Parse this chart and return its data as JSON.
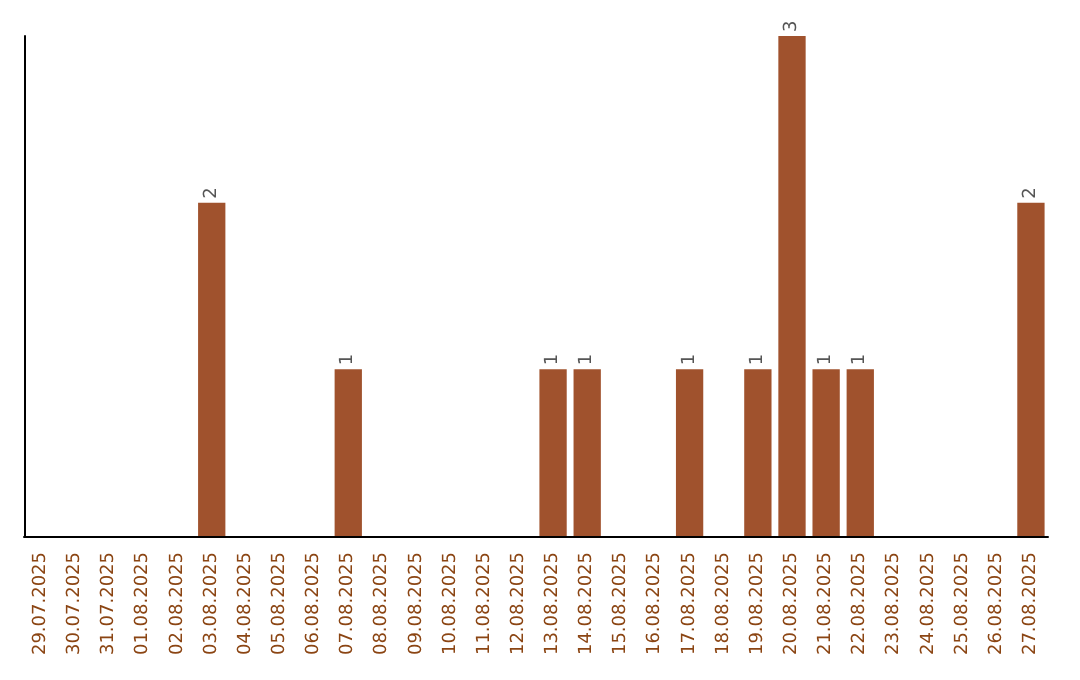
{
  "chart_data": {
    "type": "bar",
    "categories": [
      "29.07.2025",
      "30.07.2025",
      "31.07.2025",
      "01.08.2025",
      "02.08.2025",
      "03.08.2025",
      "04.08.2025",
      "05.08.2025",
      "06.08.2025",
      "07.08.2025",
      "08.08.2025",
      "09.08.2025",
      "10.08.2025",
      "11.08.2025",
      "12.08.2025",
      "13.08.2025",
      "14.08.2025",
      "15.08.2025",
      "16.08.2025",
      "17.08.2025",
      "18.08.2025",
      "19.08.2025",
      "20.08.2025",
      "21.08.2025",
      "22.08.2025",
      "23.08.2025",
      "24.08.2025",
      "25.08.2025",
      "26.08.2025",
      "27.08.2025"
    ],
    "values": [
      0,
      0,
      0,
      0,
      0,
      2,
      0,
      0,
      0,
      1,
      0,
      0,
      0,
      0,
      0,
      1,
      1,
      0,
      0,
      1,
      0,
      1,
      3,
      1,
      1,
      0,
      0,
      0,
      0,
      2
    ],
    "value_labels": [
      null,
      null,
      null,
      null,
      null,
      "2",
      null,
      null,
      null,
      "1",
      null,
      null,
      null,
      null,
      null,
      "1",
      "1",
      null,
      null,
      "1",
      null,
      "1",
      "3",
      "1",
      "1",
      null,
      null,
      null,
      null,
      "2"
    ],
    "color": "#a0522d",
    "tick_labels": "x"
  }
}
